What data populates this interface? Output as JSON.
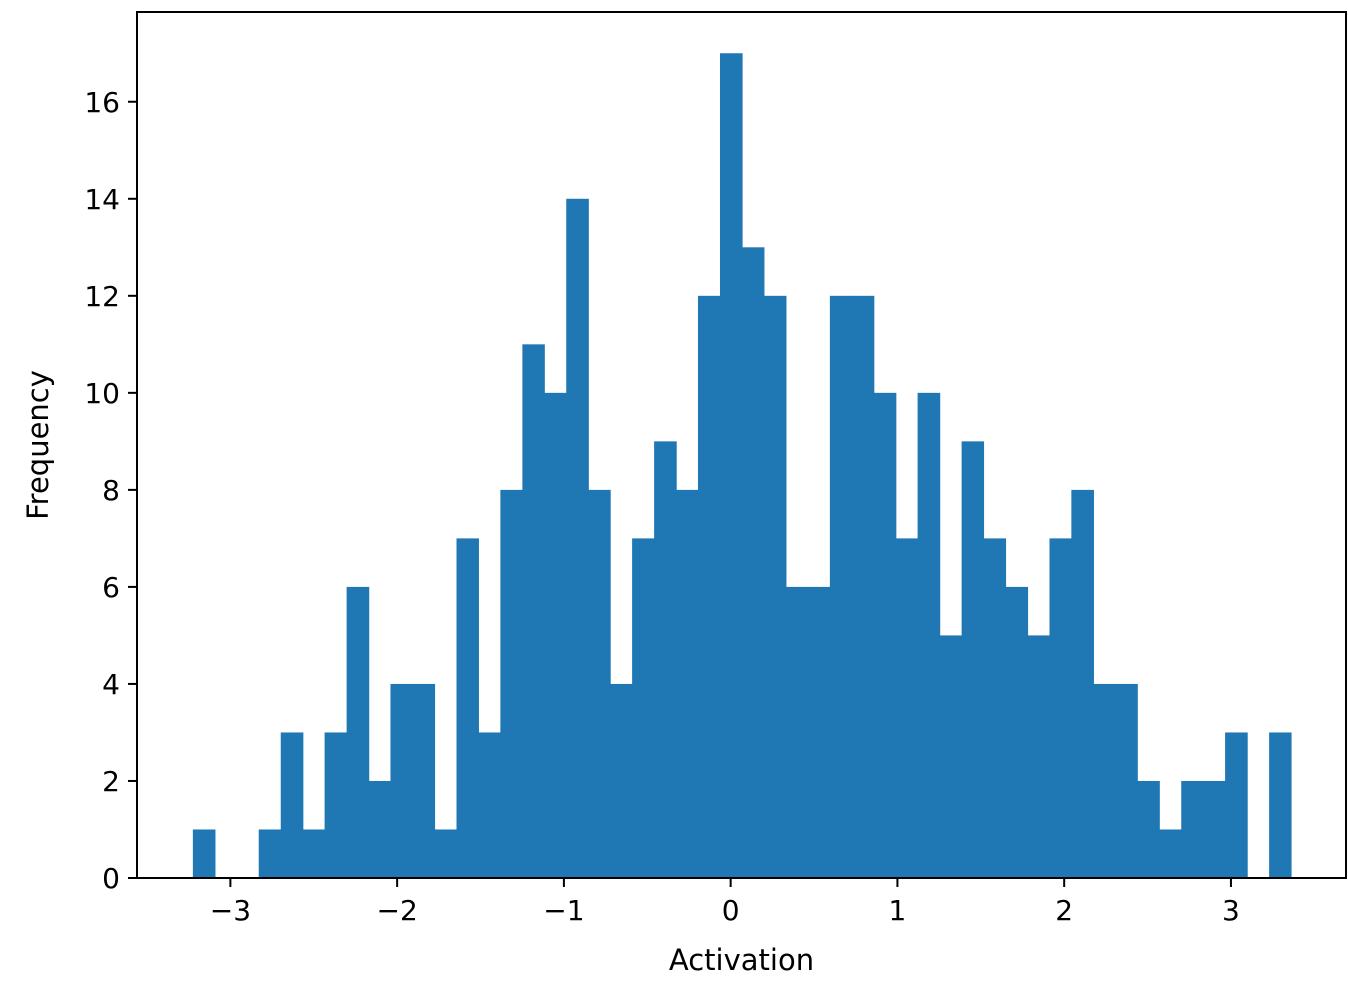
{
  "chart_data": {
    "type": "bar",
    "title": "",
    "xlabel": "Activation",
    "ylabel": "Frequency",
    "xlim": [
      -3.56,
      3.69
    ],
    "ylim": [
      0,
      17.85
    ],
    "xticks": [
      -3,
      -2,
      -1,
      0,
      1,
      2,
      3
    ],
    "xtick_labels": [
      "−3",
      "−2",
      "−1",
      "0",
      "1",
      "2",
      "3"
    ],
    "yticks": [
      0,
      2,
      4,
      6,
      8,
      10,
      12,
      14,
      16
    ],
    "ytick_labels": [
      "0",
      "2",
      "4",
      "6",
      "8",
      "10",
      "12",
      "14",
      "16"
    ],
    "bin_edges": [
      -3.225,
      -3.093,
      -2.962,
      -2.83,
      -2.698,
      -2.566,
      -2.435,
      -2.303,
      -2.171,
      -2.04,
      -1.908,
      -1.776,
      -1.644,
      -1.513,
      -1.381,
      -1.249,
      -1.118,
      -0.986,
      -0.854,
      -0.723,
      -0.591,
      -0.459,
      -0.327,
      -0.196,
      -0.064,
      0.068,
      0.199,
      0.331,
      0.463,
      0.595,
      0.726,
      0.858,
      0.99,
      1.121,
      1.253,
      1.385,
      1.516,
      1.648,
      1.78,
      1.912,
      2.043,
      2.175,
      2.307,
      2.438,
      2.57,
      2.702,
      2.834,
      2.965,
      3.097,
      3.229,
      3.36
    ],
    "values": [
      1,
      0,
      0,
      1,
      3,
      1,
      3,
      6,
      2,
      4,
      4,
      1,
      7,
      3,
      8,
      11,
      10,
      14,
      8,
      4,
      7,
      9,
      8,
      12,
      17,
      13,
      12,
      6,
      6,
      12,
      12,
      10,
      7,
      10,
      5,
      9,
      7,
      6,
      5,
      7,
      8,
      4,
      4,
      2,
      1,
      2,
      2,
      3,
      0,
      3
    ],
    "bar_color": "#1f77b4",
    "grid": false,
    "legend": "none"
  }
}
